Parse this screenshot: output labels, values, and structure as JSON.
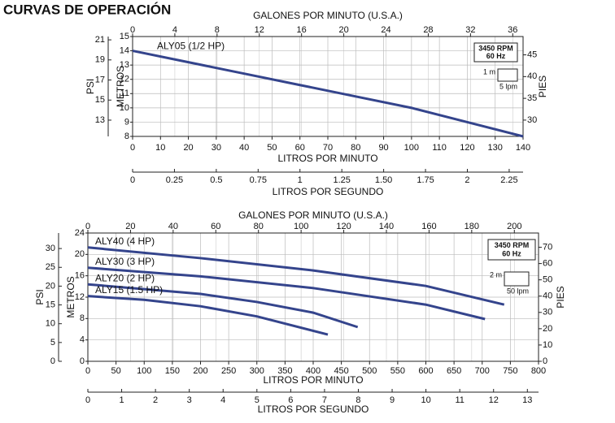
{
  "title": "CURVAS DE OPERACIÓN",
  "chart_data": [
    {
      "type": "line",
      "xlabel": "LITROS POR MINUTO",
      "x_top_label": "GALONES POR MINUTO (U.S.A.)",
      "x_second_label": "LITROS POR SEGUNDO",
      "ylabel": "METROS",
      "psi_label": "PSI",
      "y2label": "PIES",
      "xlim": [
        0,
        140
      ],
      "xticks": [
        0,
        10,
        20,
        30,
        40,
        50,
        60,
        70,
        80,
        90,
        100,
        110,
        120,
        130,
        140
      ],
      "x_top_lim": [
        0,
        36.98
      ],
      "x_top_ticks": [
        0,
        4,
        8,
        12,
        16,
        20,
        24,
        28,
        32,
        36
      ],
      "x_second_lim": [
        0,
        2.333
      ],
      "x_second_ticks": [
        0,
        0.25,
        0.5,
        0.75,
        1,
        1.25,
        {
          "value": 1.5,
          "label": "1.50"
        },
        1.75,
        2,
        2.25
      ],
      "ylim": [
        8,
        15
      ],
      "yticks": [
        8,
        9,
        10,
        11,
        12,
        13,
        14,
        15
      ],
      "psi_lim": [
        11.38,
        21.33
      ],
      "psi_ticks": [
        13,
        15,
        17,
        19,
        21
      ],
      "y2lim": [
        26.25,
        49.21
      ],
      "y2ticks": [
        30,
        35,
        40,
        45
      ],
      "grid": true,
      "series": [
        {
          "name": "ALY05 (1/2 HP)",
          "color": "#34448c",
          "x": [
            0,
            20,
            40,
            60,
            80,
            100,
            120,
            140
          ],
          "values": [
            14,
            13.2,
            12.4,
            11.6,
            10.8,
            10,
            9,
            8
          ]
        }
      ],
      "annotations": [
        "3450 RPM",
        "60 Hz",
        "1 m",
        "5 lpm"
      ]
    },
    {
      "type": "line",
      "xlabel": "LITROS POR MINUTO",
      "x_top_label": "GALONES POR MINUTO (U.S.A.)",
      "x_second_label": "LITROS POR SEGUNDO",
      "ylabel": "METROS",
      "psi_label": "PSI",
      "y2label": "PIES",
      "xlim": [
        0,
        800
      ],
      "xticks": [
        0,
        50,
        100,
        150,
        200,
        250,
        300,
        350,
        400,
        450,
        500,
        550,
        600,
        650,
        700,
        750,
        800
      ],
      "x_top_lim": [
        0,
        211.34
      ],
      "x_top_ticks": [
        0,
        20,
        40,
        60,
        80,
        100,
        120,
        140,
        160,
        180,
        200
      ],
      "x_second_lim": [
        0,
        13.33
      ],
      "x_second_ticks": [
        0,
        1,
        2,
        3,
        4,
        5,
        6,
        7,
        8,
        9,
        10,
        11,
        12,
        13
      ],
      "ylim": [
        0,
        24
      ],
      "yticks": [
        0,
        4,
        8,
        12,
        16,
        20,
        24
      ],
      "psi_lim": [
        0,
        34.13
      ],
      "psi_ticks": [
        0,
        5,
        10,
        15,
        20,
        25,
        30
      ],
      "y2lim": [
        0,
        78.74
      ],
      "y2ticks": [
        0,
        10,
        20,
        30,
        40,
        50,
        60,
        70
      ],
      "grid": true,
      "series": [
        {
          "name": "ALY40 (4 HP)",
          "color": "#34448c",
          "x": [
            0,
            200,
            400,
            600,
            739
          ],
          "values": [
            21.3,
            19.3,
            17.0,
            14.1,
            10.6
          ]
        },
        {
          "name": "ALY30 (3 HP)",
          "color": "#34448c",
          "x": [
            0,
            200,
            400,
            600,
            705
          ],
          "values": [
            17.5,
            15.9,
            13.7,
            10.6,
            7.9
          ]
        },
        {
          "name": "ALY20 (2 HP)",
          "color": "#34448c",
          "x": [
            0,
            200,
            300,
            400,
            479
          ],
          "values": [
            14.4,
            12.6,
            11.1,
            9.1,
            6.4
          ]
        },
        {
          "name": "ALY15 (1.5 HP)",
          "color": "#34448c",
          "x": [
            0,
            100,
            200,
            300,
            426
          ],
          "values": [
            12.2,
            11.5,
            10.3,
            8.4,
            5.0
          ]
        }
      ],
      "annotations": [
        "3450 RPM",
        "60 Hz",
        "2 m",
        "50 lpm"
      ]
    }
  ]
}
